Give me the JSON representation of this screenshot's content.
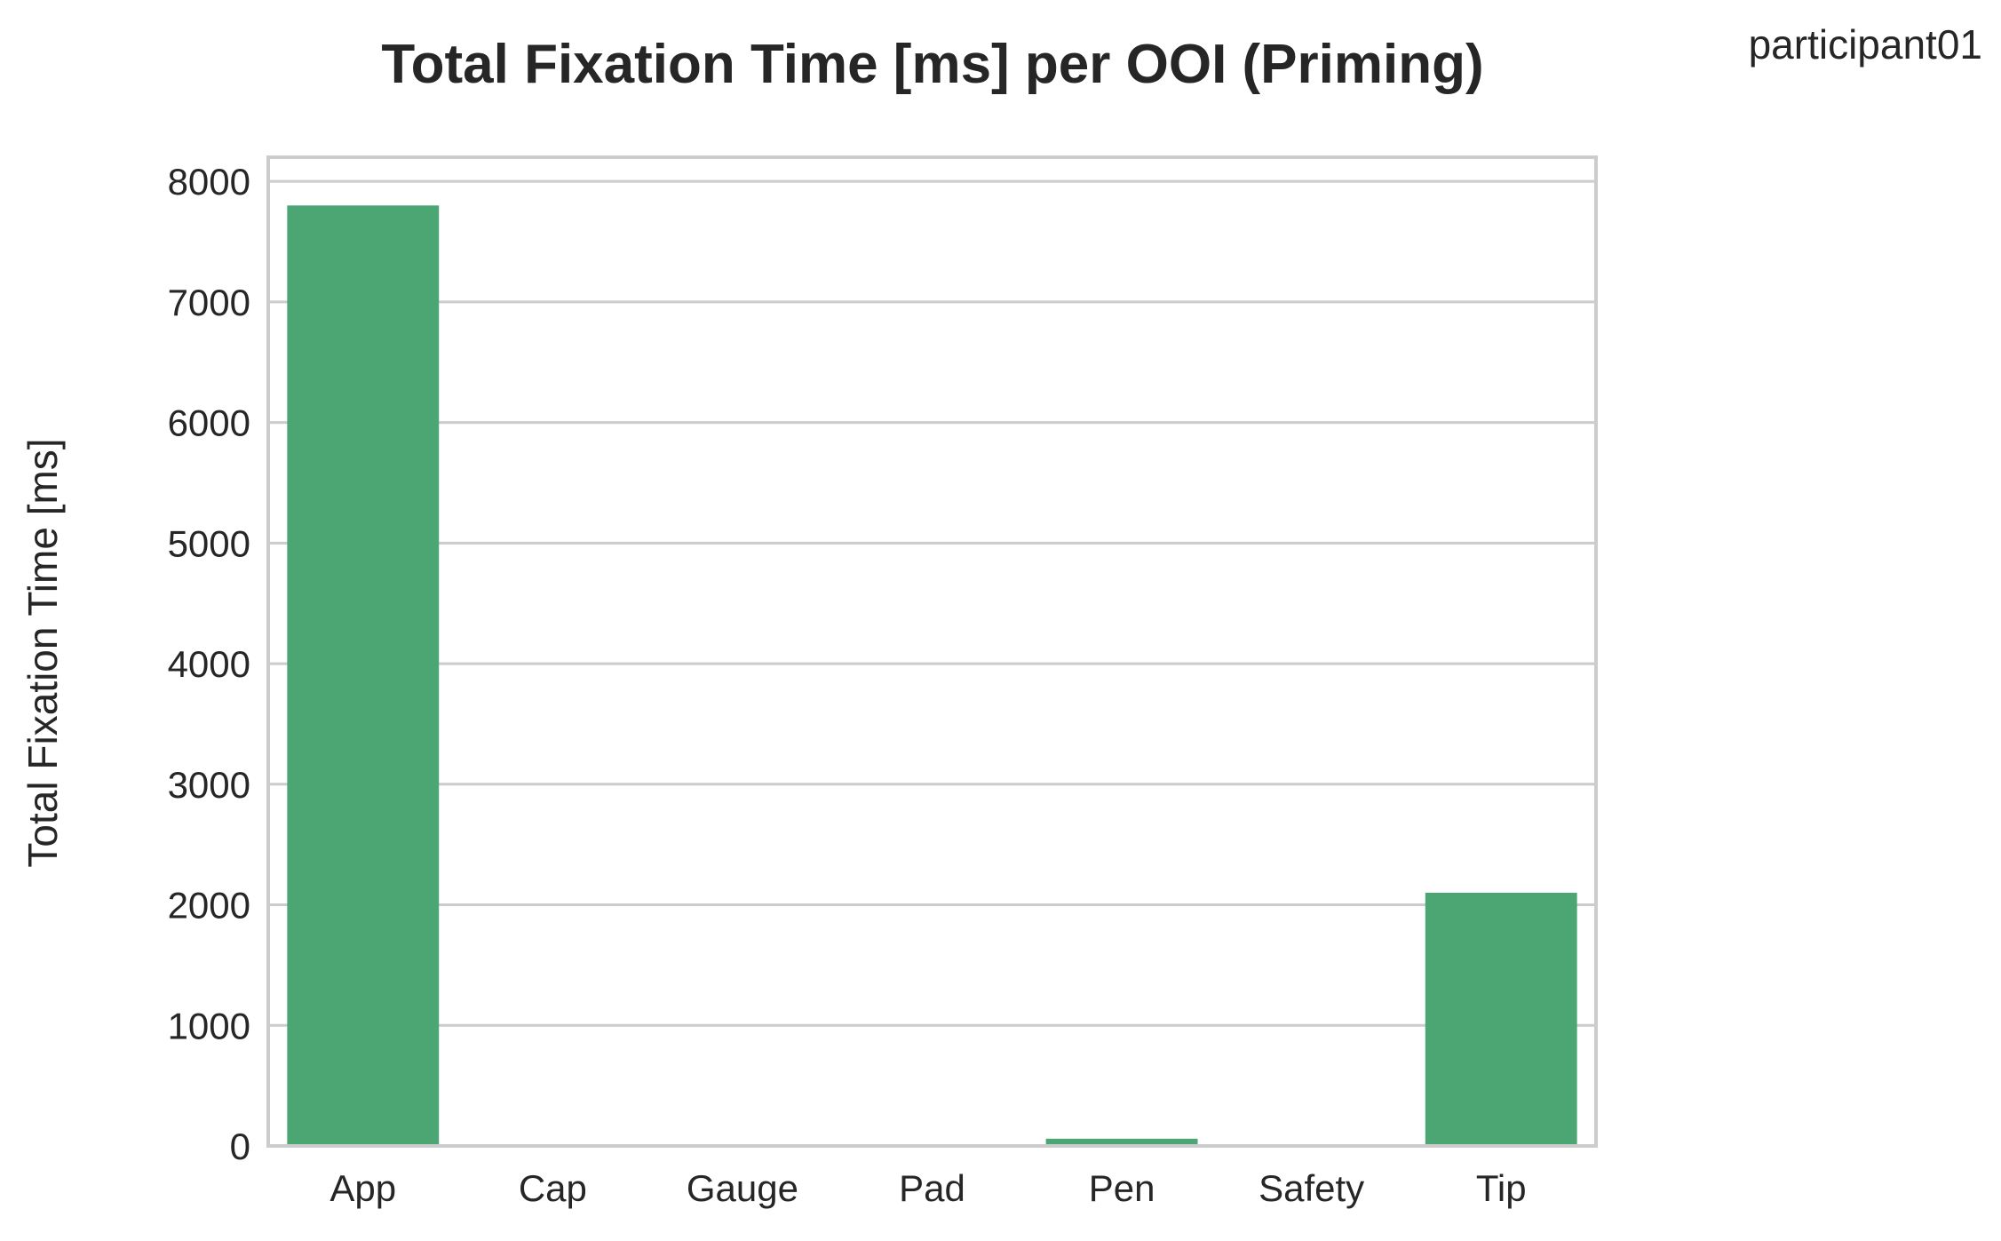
{
  "chart_data": {
    "type": "bar",
    "title": "Total Fixation Time [ms] per OOI (Priming)",
    "subtitle": "participant01",
    "xlabel": "",
    "ylabel": "Total Fixation Time [ms]",
    "categories": [
      "App",
      "Cap",
      "Gauge",
      "Pad",
      "Pen",
      "Safety",
      "Tip"
    ],
    "values": [
      7800,
      0,
      0,
      0,
      60,
      0,
      2100
    ],
    "ylim": [
      0,
      8200
    ],
    "yticks": [
      0,
      1000,
      2000,
      3000,
      4000,
      5000,
      6000,
      7000,
      8000
    ],
    "grid": true,
    "legend": "none",
    "bar_color": "#4ca674",
    "grid_color": "#cccccc"
  }
}
